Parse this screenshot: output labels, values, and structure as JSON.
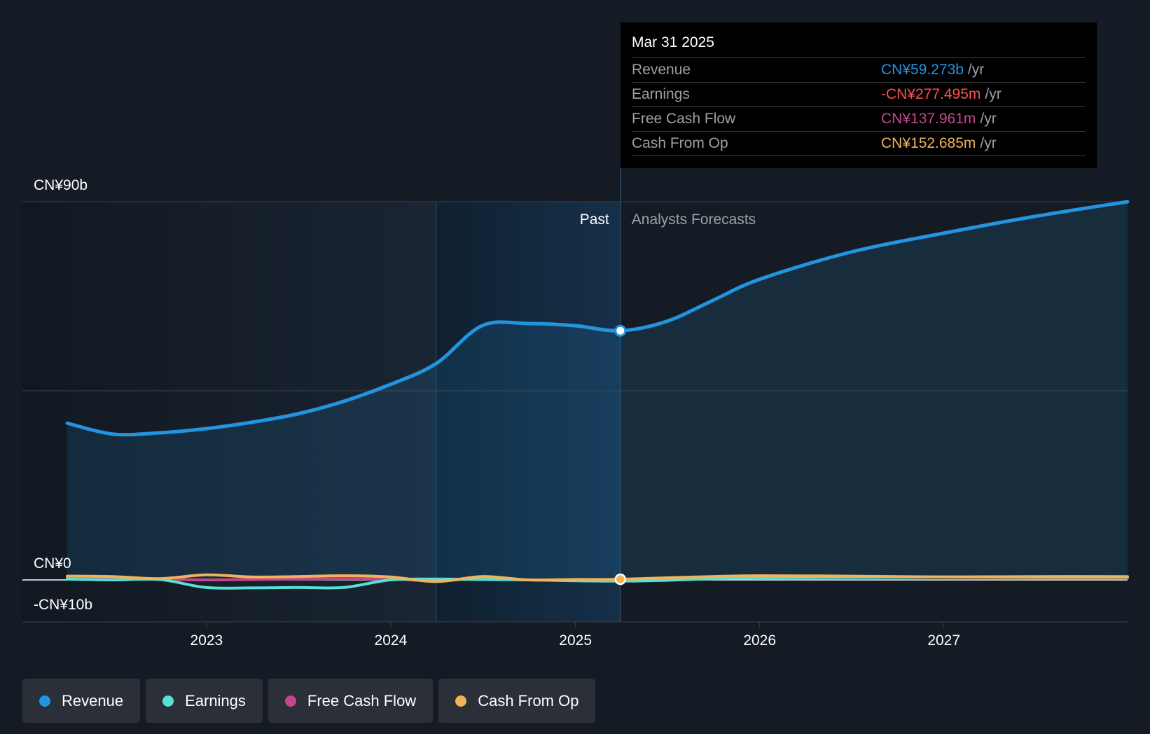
{
  "colors": {
    "revenue": "#2394df",
    "earnings": "#58e1d2",
    "free_cash_flow": "#c6468e",
    "cash_from_op": "#f0b35a",
    "earnings_value": "#ff4f4f",
    "background": "#151b24"
  },
  "tooltip": {
    "date": "Mar 31 2025",
    "rows": [
      {
        "label": "Revenue",
        "value": "CN¥59.273b",
        "unit": "/yr"
      },
      {
        "label": "Earnings",
        "value": "-CN¥277.495m",
        "unit": "/yr"
      },
      {
        "label": "Free Cash Flow",
        "value": "CN¥137.961m",
        "unit": "/yr"
      },
      {
        "label": "Cash From Op",
        "value": "CN¥152.685m",
        "unit": "/yr"
      }
    ]
  },
  "legend": [
    {
      "label": "Revenue",
      "icon": "revenue-dot-icon"
    },
    {
      "label": "Earnings",
      "icon": "earnings-dot-icon"
    },
    {
      "label": "Free Cash Flow",
      "icon": "free-cash-flow-dot-icon"
    },
    {
      "label": "Cash From Op",
      "icon": "cash-from-op-dot-icon"
    }
  ],
  "chart_data": {
    "type": "line",
    "y_tick_labels": [
      "CN¥90b",
      "CN¥0",
      "-CN¥10b"
    ],
    "ylim": [
      -10,
      90
    ],
    "ylabel": "",
    "xlabel": "",
    "x_tick_labels": [
      "2023",
      "2024",
      "2025",
      "2026",
      "2027"
    ],
    "xlim": [
      "2022-03-31",
      "2027-12-31"
    ],
    "past_label": "Past",
    "forecast_label": "Analysts Forecasts",
    "highlight_start": "2024-03-31",
    "divider_date": "2025-03-31",
    "grid": true,
    "legend_position": "bottom-left",
    "series": [
      {
        "name": "Revenue",
        "area": true,
        "points": [
          [
            "2022-03-31",
            37.3
          ],
          [
            "2022-06-30",
            34.7
          ],
          [
            "2022-09-30",
            35.0
          ],
          [
            "2022-12-31",
            36.0
          ],
          [
            "2023-03-31",
            37.5
          ],
          [
            "2023-06-30",
            39.5
          ],
          [
            "2023-09-30",
            42.5
          ],
          [
            "2023-12-31",
            46.5
          ],
          [
            "2024-03-31",
            51.5
          ],
          [
            "2024-06-30",
            60.5
          ],
          [
            "2024-09-30",
            61.0
          ],
          [
            "2024-12-31",
            60.5
          ],
          [
            "2025-03-31",
            59.3
          ],
          [
            "2025-06-30",
            61.5
          ],
          [
            "2025-09-30",
            66.5
          ],
          [
            "2025-12-31",
            71.5
          ],
          [
            "2026-06-30",
            78.0
          ],
          [
            "2026-12-31",
            82.5
          ],
          [
            "2027-06-30",
            86.5
          ],
          [
            "2027-12-31",
            90.0
          ]
        ]
      },
      {
        "name": "Earnings",
        "points": [
          [
            "2022-03-31",
            0.2
          ],
          [
            "2022-06-30",
            0.0
          ],
          [
            "2022-09-30",
            0.1
          ],
          [
            "2022-12-31",
            -1.8
          ],
          [
            "2023-03-31",
            -1.9
          ],
          [
            "2023-06-30",
            -1.8
          ],
          [
            "2023-09-30",
            -1.8
          ],
          [
            "2023-12-31",
            0.0
          ],
          [
            "2024-03-31",
            0.2
          ],
          [
            "2024-06-30",
            0.1
          ],
          [
            "2024-09-30",
            0.0
          ],
          [
            "2024-12-31",
            -0.2
          ],
          [
            "2025-03-31",
            -0.28
          ],
          [
            "2025-06-30",
            -0.1
          ],
          [
            "2025-09-30",
            0.3
          ],
          [
            "2025-12-31",
            0.5
          ],
          [
            "2026-06-30",
            0.6
          ],
          [
            "2026-12-31",
            0.7
          ],
          [
            "2027-06-30",
            0.8
          ],
          [
            "2027-12-31",
            0.8
          ]
        ]
      },
      {
        "name": "Free Cash Flow",
        "points": [
          [
            "2022-03-31",
            0.5
          ],
          [
            "2022-06-30",
            0.4
          ],
          [
            "2022-09-30",
            0.2
          ],
          [
            "2022-12-31",
            0.0
          ],
          [
            "2023-03-31",
            0.1
          ],
          [
            "2023-06-30",
            0.2
          ],
          [
            "2023-09-30",
            0.3
          ],
          [
            "2023-12-31",
            0.2
          ],
          [
            "2024-03-31",
            -0.2
          ],
          [
            "2024-06-30",
            0.3
          ],
          [
            "2024-09-30",
            0.0
          ],
          [
            "2024-12-31",
            0.05
          ],
          [
            "2025-03-31",
            0.14
          ]
        ]
      },
      {
        "name": "Cash From Op",
        "points": [
          [
            "2022-03-31",
            0.9
          ],
          [
            "2022-06-30",
            0.8
          ],
          [
            "2022-09-30",
            0.3
          ],
          [
            "2022-12-31",
            1.2
          ],
          [
            "2023-03-31",
            0.7
          ],
          [
            "2023-06-30",
            0.8
          ],
          [
            "2023-09-30",
            1.0
          ],
          [
            "2023-12-31",
            0.7
          ],
          [
            "2024-03-31",
            -0.4
          ],
          [
            "2024-06-30",
            0.8
          ],
          [
            "2024-09-30",
            0.0
          ],
          [
            "2024-12-31",
            0.1
          ],
          [
            "2025-03-31",
            0.15
          ],
          [
            "2025-06-30",
            0.5
          ],
          [
            "2025-09-30",
            0.8
          ],
          [
            "2025-12-31",
            1.0
          ],
          [
            "2026-06-30",
            0.9
          ],
          [
            "2026-12-31",
            0.7
          ],
          [
            "2027-06-30",
            0.6
          ],
          [
            "2027-12-31",
            0.6
          ]
        ]
      }
    ]
  }
}
